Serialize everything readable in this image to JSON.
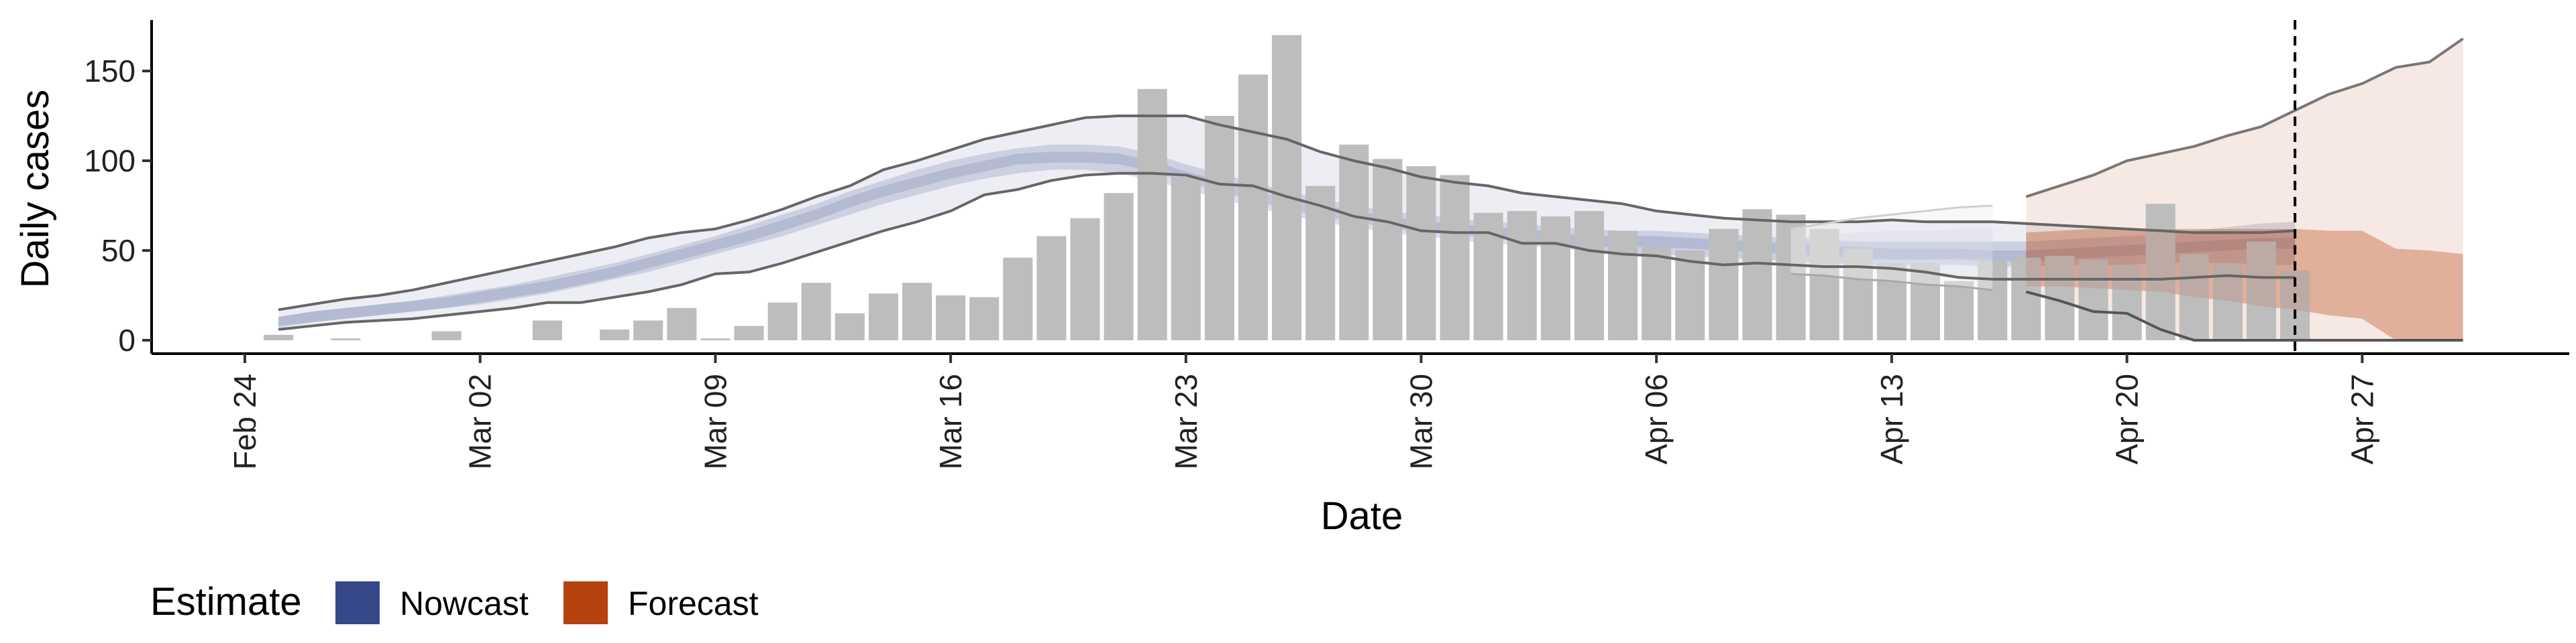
{
  "chart_data": {
    "type": "bar",
    "xlabel": "Date",
    "ylabel": "Daily cases",
    "ylim": [
      0,
      180
    ],
    "yticks": [
      0,
      50,
      100,
      150
    ],
    "x_tick_labels": [
      "Feb 24",
      "Mar 02",
      "Mar 09",
      "Mar 16",
      "Mar 23",
      "Mar 30",
      "Apr 06",
      "Apr 13",
      "Apr 20",
      "Apr 27"
    ],
    "start_date": "2020-02-24",
    "grid": false,
    "bars": {
      "color": "#bdbdbd",
      "dates": [
        "2020-02-25",
        "2020-02-26",
        "2020-02-27",
        "2020-02-28",
        "2020-02-29",
        "2020-03-01",
        "2020-03-02",
        "2020-03-03",
        "2020-03-04",
        "2020-03-05",
        "2020-03-06",
        "2020-03-07",
        "2020-03-08",
        "2020-03-09",
        "2020-03-10",
        "2020-03-11",
        "2020-03-12",
        "2020-03-13",
        "2020-03-14",
        "2020-03-15",
        "2020-03-16",
        "2020-03-17",
        "2020-03-18",
        "2020-03-19",
        "2020-03-20",
        "2020-03-21",
        "2020-03-22",
        "2020-03-23",
        "2020-03-24",
        "2020-03-25",
        "2020-03-26",
        "2020-03-27",
        "2020-03-28",
        "2020-03-29",
        "2020-03-30",
        "2020-03-31",
        "2020-04-01",
        "2020-04-02",
        "2020-04-03",
        "2020-04-04",
        "2020-04-05",
        "2020-04-06",
        "2020-04-07",
        "2020-04-08",
        "2020-04-09",
        "2020-04-10",
        "2020-04-11",
        "2020-04-12",
        "2020-04-13",
        "2020-04-14",
        "2020-04-15",
        "2020-04-16",
        "2020-04-17",
        "2020-04-18",
        "2020-04-19",
        "2020-04-20",
        "2020-04-21",
        "2020-04-22",
        "2020-04-23",
        "2020-04-24",
        "2020-04-25",
        "2020-04-26"
      ],
      "values": [
        3,
        0,
        1,
        0,
        0,
        5,
        0,
        0,
        11,
        0,
        6,
        11,
        18,
        1,
        8,
        21,
        32,
        15,
        26,
        32,
        25,
        24,
        46,
        58,
        68,
        82,
        140,
        91,
        125,
        148,
        170,
        86,
        109,
        101,
        97,
        92,
        71,
        72,
        69,
        72,
        61,
        52,
        50,
        62,
        73,
        70,
        62,
        51,
        43,
        43,
        33,
        44,
        46,
        47,
        45,
        42,
        76,
        48,
        43,
        55,
        39,
        0
      ]
    },
    "nowcast": {
      "name": "Nowcast",
      "color": "#36488a",
      "start_date": "2020-02-25",
      "median": [
        10,
        13,
        15,
        17,
        19,
        21,
        24,
        27,
        30,
        34,
        38,
        43,
        48,
        53,
        58,
        64,
        70,
        77,
        83,
        88,
        93,
        97,
        101,
        102,
        102,
        101,
        97,
        91,
        86,
        81,
        76,
        72,
        69,
        66,
        63,
        62,
        60,
        59,
        57,
        55,
        55,
        55,
        54,
        53,
        52,
        51,
        50,
        49,
        48,
        48,
        48,
        47,
        47,
        48,
        49,
        50,
        51,
        52,
        53,
        54,
        54
      ],
      "inner_low": [
        8,
        10,
        12,
        14,
        16,
        18,
        20,
        23,
        26,
        30,
        34,
        38,
        43,
        48,
        53,
        58,
        64,
        70,
        76,
        81,
        86,
        90,
        93,
        95,
        95,
        93,
        89,
        84,
        79,
        74,
        70,
        66,
        63,
        60,
        58,
        56,
        54,
        53,
        51,
        50,
        49,
        48,
        47,
        46,
        45,
        44,
        43,
        42,
        42,
        42,
        42,
        41,
        41,
        42,
        42,
        42,
        43,
        43,
        43,
        42,
        42
      ],
      "inner_high": [
        13,
        16,
        18,
        20,
        22,
        25,
        28,
        31,
        35,
        39,
        43,
        48,
        53,
        58,
        64,
        70,
        76,
        83,
        89,
        95,
        100,
        104,
        107,
        109,
        109,
        108,
        104,
        98,
        93,
        88,
        83,
        79,
        75,
        72,
        70,
        68,
        66,
        65,
        63,
        62,
        61,
        61,
        60,
        59,
        58,
        57,
        56,
        55,
        55,
        55,
        55,
        55,
        55,
        56,
        57,
        58,
        59,
        61,
        63,
        65,
        66
      ],
      "outer_low": [
        6,
        8,
        10,
        11,
        12,
        14,
        16,
        18,
        21,
        21,
        24,
        27,
        31,
        37,
        38,
        43,
        49,
        55,
        61,
        66,
        72,
        81,
        84,
        89,
        92,
        93,
        93,
        92,
        87,
        86,
        80,
        75,
        69,
        66,
        61,
        60,
        60,
        54,
        54,
        50,
        48,
        47,
        44,
        42,
        43,
        42,
        41,
        41,
        40,
        38,
        35,
        34,
        34,
        34,
        34,
        34,
        34,
        35,
        36,
        35,
        35
      ],
      "outer_high": [
        17,
        20,
        23,
        25,
        28,
        32,
        36,
        40,
        44,
        48,
        52,
        57,
        60,
        62,
        67,
        73,
        80,
        86,
        95,
        100,
        106,
        112,
        116,
        120,
        124,
        125,
        125,
        125,
        120,
        116,
        112,
        105,
        100,
        96,
        91,
        88,
        86,
        82,
        80,
        78,
        76,
        72,
        70,
        68,
        67,
        66,
        66,
        66,
        67,
        66,
        66,
        66,
        65,
        64,
        63,
        62,
        61,
        60,
        60,
        60,
        61
      ]
    },
    "nowcast_fade_end_date": "2020-04-16",
    "nowcast_fade_points": [
      {
        "date": "2020-04-10",
        "low": 37,
        "median": 49,
        "high": 62
      },
      {
        "date": "2020-04-11",
        "low": 36,
        "median": 51,
        "high": 65
      },
      {
        "date": "2020-04-12",
        "low": 34,
        "median": 52,
        "high": 68
      },
      {
        "date": "2020-04-13",
        "low": 33,
        "median": 53,
        "high": 70
      },
      {
        "date": "2020-04-14",
        "low": 31,
        "median": 53,
        "high": 72
      },
      {
        "date": "2020-04-15",
        "low": 30,
        "median": 54,
        "high": 74
      },
      {
        "date": "2020-04-16",
        "low": 28,
        "median": 54,
        "high": 75
      }
    ],
    "forecast": {
      "name": "Forecast",
      "color": "#b5410f",
      "start_date": "2020-04-17",
      "median": [
        44,
        44,
        45,
        45,
        45,
        44,
        43,
        42,
        41,
        40,
        39,
        38,
        37,
        36
      ],
      "inner_low": [
        30,
        30,
        29,
        28,
        27,
        24,
        22,
        19,
        17,
        14,
        12,
        0,
        0,
        0
      ],
      "inner_high": [
        60,
        61,
        62,
        62,
        62,
        62,
        62,
        62,
        62,
        61,
        61,
        51,
        50,
        48
      ],
      "outer_low": [
        27,
        22,
        16,
        15,
        6,
        0,
        0,
        0,
        0,
        0,
        0,
        0,
        0,
        0
      ],
      "outer_high": [
        80,
        86,
        92,
        100,
        104,
        108,
        114,
        119,
        128,
        137,
        143,
        152,
        155,
        168
      ]
    },
    "vline_date": "2020-04-25"
  },
  "legend": {
    "title": "Estimate",
    "items": [
      {
        "label": "Nowcast",
        "color": "#36488a"
      },
      {
        "label": "Forecast",
        "color": "#b5410f"
      }
    ]
  }
}
